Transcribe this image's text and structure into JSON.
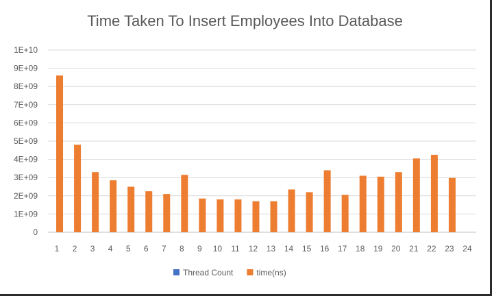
{
  "chart_data": {
    "type": "bar",
    "title": "Time Taken To Insert Employees Into Database",
    "categories": [
      "1",
      "2",
      "3",
      "4",
      "5",
      "6",
      "7",
      "8",
      "9",
      "10",
      "11",
      "12",
      "13",
      "14",
      "15",
      "16",
      "17",
      "18",
      "19",
      "20",
      "21",
      "22",
      "23",
      "24"
    ],
    "series": [
      {
        "name": "Thread Count",
        "color": "#4472C4",
        "values": [
          1,
          2,
          3,
          4,
          5,
          6,
          7,
          8,
          9,
          10,
          11,
          12,
          13,
          14,
          15,
          16,
          17,
          18,
          19,
          20,
          21,
          22,
          23,
          24
        ]
      },
      {
        "name": "time(ns)",
        "color": "#ED7D31",
        "values": [
          8600000000,
          4800000000,
          3300000000,
          2850000000,
          2500000000,
          2250000000,
          2100000000,
          3150000000,
          1850000000,
          1800000000,
          1800000000,
          1700000000,
          1700000000,
          2350000000,
          2200000000,
          3400000000,
          2050000000,
          3100000000,
          3050000000,
          3300000000,
          4050000000,
          4250000000,
          2980000000,
          null
        ]
      }
    ],
    "ylim": [
      0,
      10000000000
    ],
    "y_ticks": [
      "0",
      "1E+09",
      "2E+09",
      "3E+09",
      "4E+09",
      "5E+09",
      "6E+09",
      "7E+09",
      "8E+09",
      "9E+09",
      "1E+10"
    ],
    "grid": true,
    "legend_position": "bottom"
  }
}
